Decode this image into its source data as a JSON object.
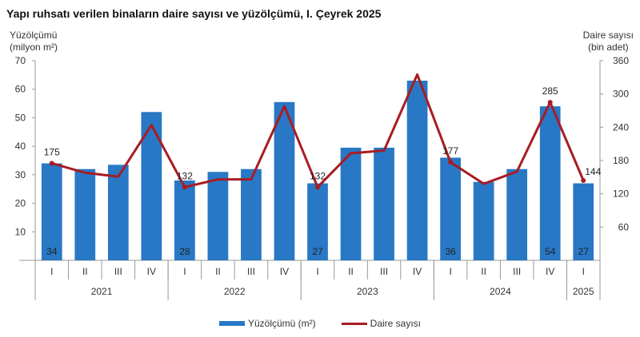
{
  "title": "Yapı ruhsatı verilen binaların daire sayısı ve yüzölçümü, I. Çeyrek 2025",
  "left_axis": {
    "title_line1": "Yüzölçümü",
    "title_line2": "(milyon m²)"
  },
  "right_axis": {
    "title_line1": "Daire sayısı",
    "title_line2": "(bin adet)"
  },
  "legend": {
    "bar_label": "Yüzölçümü (m²)",
    "line_label": "Daire sayısı"
  },
  "colors": {
    "bar": "#2878c5",
    "line": "#a81c23",
    "axis": "#999999"
  },
  "chart_data": {
    "type": "bar+line",
    "title": "Yapı ruhsatı verilen binaların daire sayısı ve yüzölçümü, I. Çeyrek 2025",
    "categories": [
      "I",
      "II",
      "III",
      "IV",
      "I",
      "II",
      "III",
      "IV",
      "I",
      "II",
      "III",
      "IV",
      "I",
      "II",
      "III",
      "IV",
      "I"
    ],
    "years": [
      {
        "label": "2021",
        "span": 4
      },
      {
        "label": "2022",
        "span": 4
      },
      {
        "label": "2023",
        "span": 4
      },
      {
        "label": "2024",
        "span": 4
      },
      {
        "label": "2025",
        "span": 1
      }
    ],
    "series": [
      {
        "name": "Yüzölçümü (m²)",
        "type": "bar",
        "axis": "left",
        "values": [
          34,
          32,
          33.5,
          52,
          28,
          31,
          32,
          55.5,
          27,
          39.5,
          39.5,
          63,
          36,
          27.5,
          32,
          54,
          27
        ],
        "labels": {
          "0": "34",
          "4": "28",
          "8": "27",
          "12": "36",
          "15": "54",
          "16": "27"
        }
      },
      {
        "name": "Daire sayısı",
        "type": "line",
        "axis": "right",
        "values": [
          175,
          158,
          151,
          244,
          132,
          146,
          146,
          278,
          132,
          193,
          198,
          335,
          177,
          138,
          160,
          285,
          144
        ],
        "labels": {
          "0": "175",
          "4": "132",
          "8": "132",
          "12": "177",
          "15": "285",
          "16": "144"
        }
      }
    ],
    "ylabel_left": "Yüzölçümü (milyon m²)",
    "ylabel_right": "Daire sayısı (bin adet)",
    "ylim_left": [
      0,
      70
    ],
    "ylim_right": [
      0,
      360
    ],
    "yticks_left": [
      10,
      20,
      30,
      40,
      50,
      60,
      70
    ],
    "yticks_right": [
      60,
      120,
      180,
      240,
      300,
      360
    ],
    "grid": false,
    "legend_position": "bottom"
  }
}
